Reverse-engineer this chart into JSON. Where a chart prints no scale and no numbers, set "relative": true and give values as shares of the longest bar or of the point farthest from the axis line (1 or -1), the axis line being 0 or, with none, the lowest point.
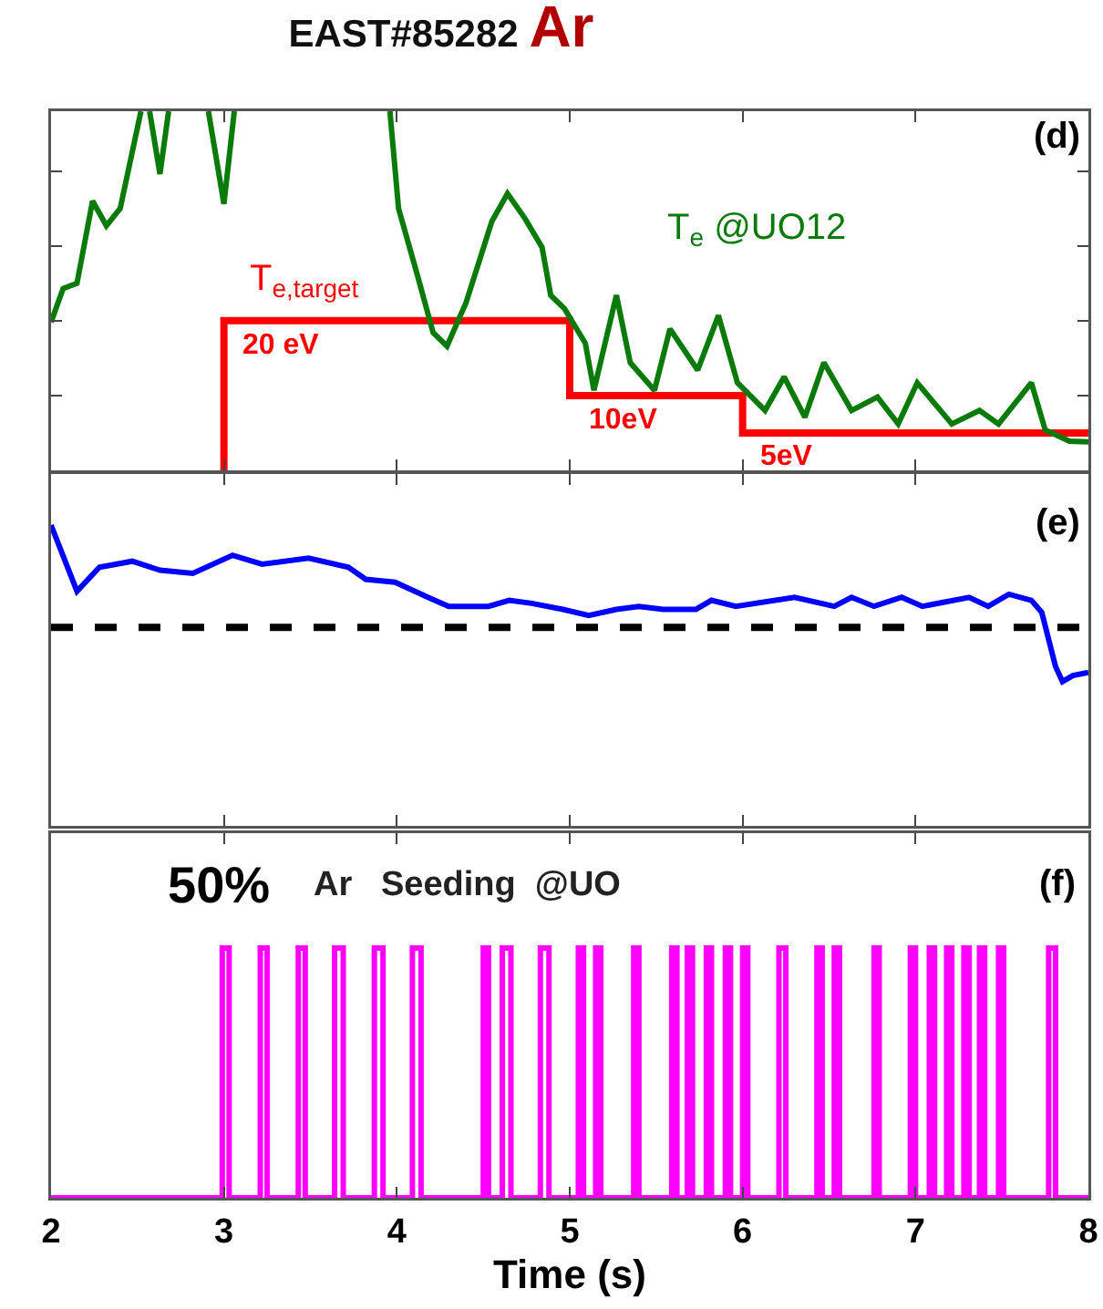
{
  "chart_data": [
    {
      "type": "line",
      "title": "EAST#85282",
      "subtitle": "Ar",
      "xlim": [
        2,
        8
      ],
      "xticks": [
        {
          "value": 2,
          "label": null
        },
        {
          "value": 3,
          "label": null
        },
        {
          "value": 4,
          "label": null
        },
        {
          "value": 5,
          "label": null
        },
        {
          "value": 6,
          "label": null
        },
        {
          "value": 7,
          "label": null
        },
        {
          "value": 8,
          "label": null
        }
      ],
      "ylim": [
        0,
        48
      ],
      "yticks": [
        {
          "value": 10,
          "label": null
        },
        {
          "value": 20,
          "label": null
        },
        {
          "value": 30,
          "label": null
        },
        {
          "value": 40,
          "label": null
        }
      ],
      "tick_labels": false,
      "annotations": [
        "(d)"
      ],
      "series": [
        {
          "type": "step",
          "name": "T$_{e,target}$",
          "color": "#ff0000",
          "x": [
            3,
            3,
            5,
            6,
            8
          ],
          "values": [
            0,
            20,
            10,
            5,
            5
          ],
          "value_labels": [
            null,
            "20 eV",
            "10eV",
            "5eV",
            null
          ]
        },
        {
          "name": "T$_{e}$ @UO12",
          "color": "#0a7a0a",
          "x": [
            2,
            2.07,
            2.15,
            2.24,
            2.32,
            2.4,
            2.52,
            2.53,
            2.57,
            2.63,
            2.68,
            2.69,
            2.91,
            3.0,
            3.06,
            3.07,
            3.96,
            4.01,
            4.12,
            4.21,
            4.29,
            4.4,
            4.55,
            4.64,
            4.74,
            4.84,
            4.89,
            4.97,
            5.09,
            5.14,
            5.27,
            5.35,
            5.49,
            5.58,
            5.74,
            5.86,
            5.97,
            6.13,
            6.24,
            6.36,
            6.47,
            6.63,
            6.78,
            6.9,
            7.01,
            7.21,
            7.37,
            7.48,
            7.67,
            7.75,
            7.89,
            8
          ],
          "values": [
            19.8,
            24.3,
            25,
            36,
            32.7,
            35,
            48,
            null,
            48,
            39.6,
            48,
            null,
            48,
            35.6,
            48,
            null,
            48,
            35,
            26,
            18.4,
            16.6,
            22.4,
            33.3,
            37,
            33.7,
            29.8,
            23.4,
            21.6,
            17,
            10.7,
            23.4,
            14.4,
            10.7,
            18.9,
            13.4,
            20.7,
            11.7,
            8,
            12.5,
            7.1,
            14.4,
            8,
            9.8,
            6.2,
            11.7,
            6.2,
            8,
            6.2,
            11.7,
            5.4,
            3.9,
            3.8
          ]
        }
      ]
    },
    {
      "type": "line",
      "relative": true,
      "xlim": [
        2,
        8
      ],
      "xticks": [
        {
          "value": 2,
          "label": null
        },
        {
          "value": 3,
          "label": null
        },
        {
          "value": 4,
          "label": null
        },
        {
          "value": 5,
          "label": null
        },
        {
          "value": 6,
          "label": null
        },
        {
          "value": 7,
          "label": null
        },
        {
          "value": 8,
          "label": null
        }
      ],
      "tick_labels": false,
      "annotations": [
        "(e)"
      ],
      "ref_lines": [
        {
          "axis": "y",
          "value": 0.66,
          "color": "#000000",
          "line_style": "dashed"
        }
      ],
      "series": [
        {
          "color": "#0000ff",
          "x": [
            2,
            2.15,
            2.28,
            2.47,
            2.63,
            2.82,
            3.05,
            3.22,
            3.49,
            3.72,
            3.82,
            3.99,
            4.18,
            4.3,
            4.53,
            4.65,
            4.78,
            4.96,
            5.11,
            5.27,
            5.4,
            5.54,
            5.73,
            5.82,
            5.96,
            6.3,
            6.53,
            6.63,
            6.76,
            6.92,
            7.04,
            7.31,
            7.42,
            7.54,
            7.67,
            7.73,
            7.81,
            7.85,
            7.91,
            8
          ],
          "values": [
            1,
            0.78,
            0.86,
            0.88,
            0.85,
            0.84,
            0.9,
            0.87,
            0.89,
            0.86,
            0.82,
            0.81,
            0.76,
            0.73,
            0.73,
            0.75,
            0.74,
            0.72,
            0.7,
            0.72,
            0.73,
            0.72,
            0.72,
            0.75,
            0.73,
            0.76,
            0.73,
            0.76,
            0.73,
            0.76,
            0.73,
            0.76,
            0.73,
            0.77,
            0.75,
            0.71,
            0.53,
            0.48,
            0.5,
            0.51
          ]
        }
      ]
    },
    {
      "type": "line",
      "relative": true,
      "xlim": [
        2,
        8
      ],
      "xticks": [
        2,
        3,
        4,
        5,
        6,
        7,
        8
      ],
      "xlabel": "Time (s)",
      "tick_labels": "x",
      "annotations": [
        "50%",
        "Ar   Seeding  @UO",
        "(f)"
      ],
      "series": [
        {
          "color": "#ff00ff",
          "x": [
            2,
            2.99,
            2.99,
            3.03,
            3.03,
            3.21,
            3.21,
            3.25,
            3.25,
            3.43,
            3.43,
            3.47,
            3.47,
            3.64,
            3.64,
            3.69,
            3.69,
            3.87,
            3.87,
            3.92,
            3.92,
            4.09,
            4.09,
            4.14,
            4.14,
            4.5,
            4.5,
            4.53,
            4.53,
            4.61,
            4.61,
            4.66,
            4.66,
            4.83,
            4.83,
            4.88,
            4.88,
            5.05,
            5.05,
            5.08,
            5.08,
            5.15,
            5.15,
            5.18,
            5.18,
            5.37,
            5.37,
            5.4,
            5.4,
            5.59,
            5.59,
            5.62,
            5.62,
            5.68,
            5.68,
            5.71,
            5.71,
            5.79,
            5.79,
            5.82,
            5.82,
            5.9,
            5.9,
            5.93,
            5.93,
            6.0,
            6.0,
            6.03,
            6.03,
            6.21,
            6.21,
            6.25,
            6.25,
            6.43,
            6.43,
            6.46,
            6.46,
            6.53,
            6.53,
            6.56,
            6.56,
            6.76,
            6.76,
            6.79,
            6.79,
            6.97,
            6.97,
            7.0,
            7.0,
            7.08,
            7.08,
            7.11,
            7.11,
            7.18,
            7.18,
            7.21,
            7.21,
            7.28,
            7.28,
            7.31,
            7.31,
            7.37,
            7.37,
            7.4,
            7.4,
            7.48,
            7.48,
            7.51,
            7.51,
            7.77,
            7.77,
            7.81,
            7.81,
            8
          ],
          "values": [
            0,
            0,
            1,
            1,
            0,
            0,
            1,
            1,
            0,
            0,
            1,
            1,
            0,
            0,
            1,
            1,
            0,
            0,
            1,
            1,
            0,
            0,
            1,
            1,
            0,
            0,
            1,
            1,
            0,
            0,
            1,
            1,
            0,
            0,
            1,
            1,
            0,
            0,
            1,
            1,
            0,
            0,
            1,
            1,
            0,
            0,
            1,
            1,
            0,
            0,
            1,
            1,
            0,
            0,
            1,
            1,
            0,
            0,
            1,
            1,
            0,
            0,
            1,
            1,
            0,
            0,
            1,
            1,
            0,
            0,
            1,
            1,
            0,
            0,
            1,
            1,
            0,
            0,
            1,
            1,
            0,
            0,
            1,
            1,
            0,
            0,
            1,
            1,
            0,
            0,
            1,
            1,
            0,
            0,
            1,
            1,
            0,
            0,
            1,
            1,
            0,
            0,
            1,
            1,
            0,
            0,
            1,
            1,
            0,
            0,
            1,
            1,
            0,
            0
          ]
        }
      ]
    }
  ]
}
